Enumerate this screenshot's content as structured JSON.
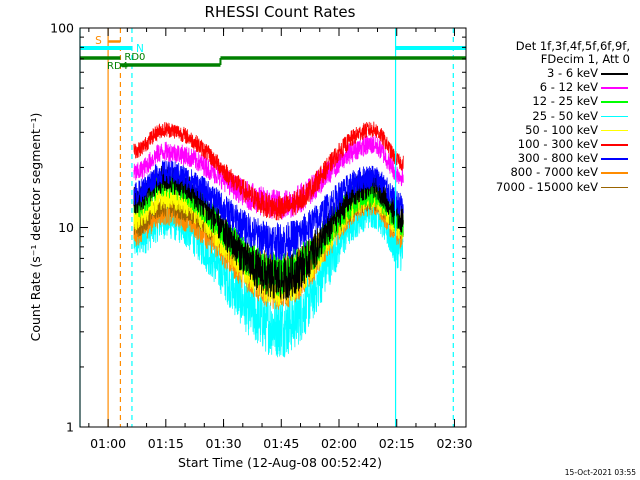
{
  "chart_data": {
    "type": "line",
    "title": "RHESSI Count Rates",
    "xlabel": "Start Time (12-Aug-08 00:52:42)",
    "ylabel": "Count Rate (s⁻¹ detector segment⁻¹)",
    "yscale": "log",
    "ylim": [
      1,
      100
    ],
    "xlim_minutes_after_start": [
      0,
      100.3
    ],
    "x_ticks": [
      {
        "label": "01:00",
        "t": 7.3
      },
      {
        "label": "01:15",
        "t": 22.3
      },
      {
        "label": "01:30",
        "t": 37.3
      },
      {
        "label": "01:45",
        "t": 52.3
      },
      {
        "label": "02:00",
        "t": 67.3
      },
      {
        "label": "02:15",
        "t": 82.3
      },
      {
        "label": "02:30",
        "t": 97.3
      }
    ],
    "y_ticks": [
      {
        "label": "1",
        "v": 1
      },
      {
        "label": "10",
        "v": 10
      },
      {
        "label": "100",
        "v": 100
      }
    ],
    "data_interval_minutes": [
      14.0,
      84.0
    ],
    "series": [
      {
        "name": "3 - 6 keV",
        "color": "#000000",
        "start": 17.5,
        "dip": 5.5,
        "peak2": 16.5,
        "end": 11.0,
        "noise": 0.07
      },
      {
        "name": "6 - 12 keV",
        "color": "#ff00ff",
        "start": 24.0,
        "dip": 13.0,
        "peak2": 26.0,
        "end": 18.0,
        "noise": 0.05
      },
      {
        "name": "12 - 25 keV",
        "color": "#00ff00",
        "start": 16.5,
        "dip": 5.8,
        "peak2": 15.0,
        "end": 10.5,
        "noise": 0.07
      },
      {
        "name": "25 - 50 keV",
        "color": "#00ffff",
        "start": 11.0,
        "dip": 3.2,
        "peak2": 12.5,
        "end": 7.5,
        "noise": 0.1
      },
      {
        "name": "50 - 100 keV",
        "color": "#ffff00",
        "start": 14.5,
        "dip": 5.2,
        "peak2": 14.5,
        "end": 10.0,
        "noise": 0.07
      },
      {
        "name": "100 - 300 keV",
        "color": "#ff0000",
        "start": 31.0,
        "dip": 12.5,
        "peak2": 31.0,
        "end": 21.0,
        "noise": 0.04
      },
      {
        "name": "300 - 800 keV",
        "color": "#0000ff",
        "start": 19.0,
        "dip": 8.5,
        "peak2": 18.0,
        "end": 13.0,
        "noise": 0.06
      },
      {
        "name": "800 - 7000 keV",
        "color": "#ff8c00",
        "start": 12.0,
        "dip": 5.0,
        "peak2": 13.5,
        "end": 9.0,
        "noise": 0.07
      },
      {
        "name": "7000 - 15000 keV",
        "color": "#9a6400",
        "start": 13.0,
        "dip": 6.0,
        "peak2": 14.0,
        "end": 10.0,
        "noise": 0.06
      }
    ],
    "legend_header": [
      "Det 1f,3f,4f,5f,6f,9f,",
      "FDecim 1, Att 0"
    ],
    "legend_position": "right",
    "annotations": {
      "saa": {
        "label": "S",
        "color": "#ff8c00",
        "start": 7.3,
        "end": 10.5,
        "line_solid": 7.3,
        "line_dashed": 10.5
      },
      "night": [
        {
          "label": "N",
          "color": "#00ffff",
          "start": 0,
          "end": 13.5,
          "line_solid": 0,
          "line_dashed": 13.5
        },
        {
          "color": "#00ffff",
          "start": 82.0,
          "end": 100.3,
          "line_solid": 82.0,
          "line_dashed": 97.0
        }
      ],
      "decimation": [
        {
          "label": "RD4",
          "color": "#008000",
          "start": 0,
          "end": 10.5
        },
        {
          "label": "RD0",
          "color": "#008000",
          "start": 10.5,
          "end": 36.5
        },
        {
          "color": "#008000",
          "start": 36.5,
          "end": 100.3
        }
      ]
    }
  },
  "footer": "15-Oct-2021 03:55"
}
